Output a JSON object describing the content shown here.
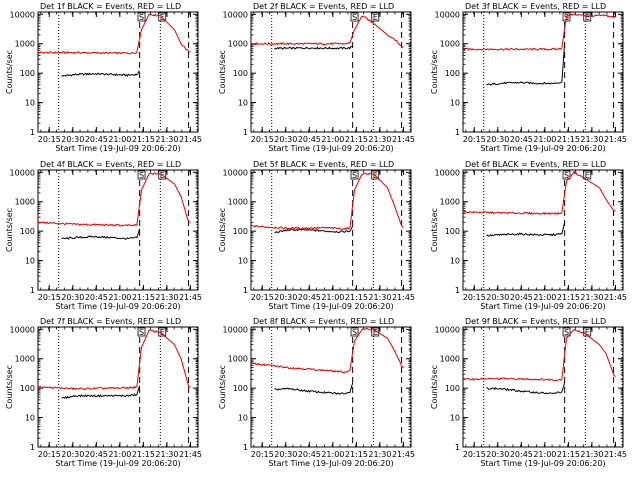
{
  "figure": {
    "xlabel": "Start Time (19-Jul-09 20:06:20)",
    "ylabel": "Counts/sec",
    "xticks": [
      "20:15",
      "20:30",
      "20:45",
      "21:00",
      "21:15",
      "21:30",
      "21:45"
    ],
    "yticks": [
      "1",
      "10",
      "100",
      "1000",
      "10000"
    ]
  },
  "chart_data": [
    {
      "type": "line",
      "title": "Det 1f BLACK = Events, RED = LLD",
      "yscale": "log",
      "xlim": [
        20.1,
        21.8
      ],
      "ylim": [
        1,
        12000
      ],
      "xlabel": "Start Time (19-Jul-09 20:06:20)",
      "ylabel": "Counts/sec",
      "grid": false,
      "series": [
        {
          "color": "#000000",
          "x": [
            20.35,
            20.5,
            20.7,
            20.9,
            21.05,
            21.15,
            21.18
          ],
          "y": [
            80,
            90,
            95,
            90,
            85,
            90,
            120
          ]
        },
        {
          "color": "#e00000",
          "x": [
            20.1,
            20.5,
            20.9,
            21.1,
            21.15,
            21.2,
            21.28,
            21.4,
            21.55,
            21.62,
            21.7,
            21.72
          ],
          "y": [
            500,
            500,
            480,
            480,
            520,
            3000,
            10000,
            9000,
            3000,
            1000,
            550,
            550
          ]
        }
      ],
      "vlines_dotted": [
        20.32,
        21.4,
        21.79
      ],
      "vlines_dashed": [
        21.18,
        21.7
      ],
      "markers": [
        {
          "label": "S",
          "x": 21.2
        },
        {
          "label": "E",
          "x": 21.42
        }
      ]
    },
    {
      "type": "line",
      "title": "Det 2f BLACK = Events, RED = LLD",
      "yscale": "log",
      "xlim": [
        20.1,
        21.8
      ],
      "ylim": [
        1,
        12000
      ],
      "xlabel": "Start Time (19-Jul-09 20:06:20)",
      "ylabel": "Counts/sec",
      "grid": false,
      "series": [
        {
          "color": "#000000",
          "x": [
            20.35,
            20.5,
            20.7,
            20.9,
            21.05,
            21.15,
            21.18
          ],
          "y": [
            700,
            700,
            720,
            710,
            700,
            720,
            800
          ]
        },
        {
          "color": "#e00000",
          "x": [
            20.1,
            20.5,
            20.9,
            21.1,
            21.15,
            21.2,
            21.28,
            21.4,
            21.55,
            21.62,
            21.7,
            21.72
          ],
          "y": [
            1000,
            1000,
            1000,
            1000,
            1050,
            3000,
            9000,
            5000,
            2000,
            1500,
            800,
            800
          ]
        }
      ],
      "vlines_dotted": [
        20.32,
        21.4,
        21.79
      ],
      "vlines_dashed": [
        21.18,
        21.7
      ],
      "markers": [
        {
          "label": "S",
          "x": 21.2
        },
        {
          "label": "E",
          "x": 21.42
        }
      ]
    },
    {
      "type": "line",
      "title": "Det 3f BLACK = Events, RED = LLD",
      "yscale": "log",
      "xlim": [
        20.1,
        21.8
      ],
      "ylim": [
        1,
        12000
      ],
      "xlabel": "Start Time (19-Jul-09 20:06:20)",
      "ylabel": "Counts/sec",
      "grid": false,
      "series": [
        {
          "color": "#000000",
          "x": [
            20.35,
            20.5,
            20.7,
            20.9,
            21.05,
            21.15,
            21.18
          ],
          "y": [
            40,
            45,
            48,
            45,
            45,
            50,
            1000
          ]
        },
        {
          "color": "#e00000",
          "x": [
            20.1,
            20.5,
            20.9,
            21.1,
            21.15,
            21.2,
            21.28,
            21.4,
            21.55,
            21.62,
            21.7,
            21.72
          ],
          "y": [
            650,
            650,
            650,
            650,
            700,
            9000,
            10000,
            9000,
            9000,
            9000,
            8000,
            8000
          ]
        }
      ],
      "vlines_dotted": [
        20.32,
        21.4,
        21.79
      ],
      "vlines_dashed": [
        21.18,
        21.7
      ],
      "markers": [
        {
          "label": "S",
          "x": 21.2
        },
        {
          "label": "E",
          "x": 21.42
        }
      ]
    },
    {
      "type": "line",
      "title": "Det 4f BLACK = Events, RED = LLD",
      "yscale": "log",
      "xlim": [
        20.1,
        21.8
      ],
      "ylim": [
        1,
        12000
      ],
      "xlabel": "Start Time (19-Jul-09 20:06:20)",
      "ylabel": "Counts/sec",
      "grid": false,
      "series": [
        {
          "color": "#000000",
          "x": [
            20.35,
            20.5,
            20.7,
            20.9,
            21.05,
            21.15,
            21.18
          ],
          "y": [
            55,
            60,
            65,
            60,
            55,
            60,
            120
          ]
        },
        {
          "color": "#e00000",
          "x": [
            20.1,
            20.5,
            20.9,
            21.1,
            21.15,
            21.2,
            21.28,
            21.4,
            21.55,
            21.62,
            21.7,
            21.72
          ],
          "y": [
            200,
            170,
            160,
            155,
            160,
            2500,
            9000,
            9000,
            4000,
            1500,
            200,
            200
          ]
        }
      ],
      "vlines_dotted": [
        20.32,
        21.4,
        21.79
      ],
      "vlines_dashed": [
        21.18,
        21.7
      ],
      "markers": [
        {
          "label": "S",
          "x": 21.2
        },
        {
          "label": "E",
          "x": 21.42
        }
      ]
    },
    {
      "type": "line",
      "title": "Det 5f BLACK = Events, RED = LLD",
      "yscale": "log",
      "xlim": [
        20.1,
        21.8
      ],
      "ylim": [
        1,
        12000
      ],
      "xlabel": "Start Time (19-Jul-09 20:06:20)",
      "ylabel": "Counts/sec",
      "grid": false,
      "series": [
        {
          "color": "#000000",
          "x": [
            20.35,
            20.5,
            20.7,
            20.9,
            21.05,
            21.15,
            21.18
          ],
          "y": [
            90,
            110,
            110,
            100,
            95,
            100,
            150
          ]
        },
        {
          "color": "#e00000",
          "x": [
            20.1,
            20.5,
            20.9,
            21.1,
            21.15,
            21.2,
            21.28,
            21.4,
            21.55,
            21.62,
            21.7,
            21.72
          ],
          "y": [
            150,
            125,
            130,
            120,
            125,
            2500,
            9000,
            9000,
            3000,
            800,
            150,
            130
          ]
        }
      ],
      "vlines_dotted": [
        20.32,
        21.4,
        21.79
      ],
      "vlines_dashed": [
        21.18,
        21.7
      ],
      "markers": [
        {
          "label": "S",
          "x": 21.2
        },
        {
          "label": "E",
          "x": 21.42
        }
      ]
    },
    {
      "type": "line",
      "title": "Det 6f BLACK = Events, RED = LLD",
      "yscale": "log",
      "xlim": [
        20.1,
        21.8
      ],
      "ylim": [
        1,
        12000
      ],
      "xlabel": "Start Time (19-Jul-09 20:06:20)",
      "ylabel": "Counts/sec",
      "grid": false,
      "series": [
        {
          "color": "#000000",
          "x": [
            20.35,
            20.5,
            20.7,
            20.9,
            21.05,
            21.15,
            21.18
          ],
          "y": [
            70,
            75,
            80,
            75,
            75,
            80,
            200
          ]
        },
        {
          "color": "#e00000",
          "x": [
            20.1,
            20.5,
            20.9,
            21.1,
            21.15,
            21.2,
            21.28,
            21.4,
            21.55,
            21.62,
            21.7,
            21.72
          ],
          "y": [
            450,
            420,
            400,
            400,
            420,
            5000,
            10000,
            6000,
            3000,
            1200,
            500,
            500
          ]
        }
      ],
      "vlines_dotted": [
        20.32,
        21.4,
        21.79
      ],
      "vlines_dashed": [
        21.18,
        21.7
      ],
      "markers": [
        {
          "label": "S",
          "x": 21.2
        },
        {
          "label": "E",
          "x": 21.42
        }
      ]
    },
    {
      "type": "line",
      "title": "Det 7f BLACK = Events, RED = LLD",
      "yscale": "log",
      "xlim": [
        20.1,
        21.8
      ],
      "ylim": [
        1,
        12000
      ],
      "xlabel": "Start Time (19-Jul-09 20:06:20)",
      "ylabel": "Counts/sec",
      "grid": false,
      "series": [
        {
          "color": "#000000",
          "x": [
            20.35,
            20.5,
            20.7,
            20.9,
            21.05,
            21.15,
            21.18
          ],
          "y": [
            45,
            55,
            55,
            55,
            55,
            60,
            120
          ]
        },
        {
          "color": "#e00000",
          "x": [
            20.1,
            20.5,
            20.9,
            21.1,
            21.15,
            21.2,
            21.28,
            21.4,
            21.55,
            21.62,
            21.7,
            21.72
          ],
          "y": [
            110,
            95,
            100,
            105,
            110,
            2500,
            9000,
            8000,
            3000,
            1000,
            120,
            110
          ]
        }
      ],
      "vlines_dotted": [
        20.32,
        21.4,
        21.79
      ],
      "vlines_dashed": [
        21.18,
        21.7
      ],
      "markers": [
        {
          "label": "S",
          "x": 21.2
        },
        {
          "label": "E",
          "x": 21.42
        }
      ]
    },
    {
      "type": "line",
      "title": "Det 8f BLACK = Events, RED = LLD",
      "yscale": "log",
      "xlim": [
        20.1,
        21.8
      ],
      "ylim": [
        1,
        12000
      ],
      "xlabel": "Start Time (19-Jul-09 20:06:20)",
      "ylabel": "Counts/sec",
      "grid": false,
      "series": [
        {
          "color": "#000000",
          "x": [
            20.35,
            20.5,
            20.7,
            20.9,
            21.05,
            21.15,
            21.18
          ],
          "y": [
            90,
            95,
            80,
            70,
            65,
            70,
            150
          ]
        },
        {
          "color": "#e00000",
          "x": [
            20.1,
            20.5,
            20.9,
            21.1,
            21.15,
            21.2,
            21.28,
            21.4,
            21.55,
            21.62,
            21.7,
            21.72
          ],
          "y": [
            700,
            500,
            400,
            350,
            400,
            4000,
            10000,
            10000,
            5000,
            2000,
            600,
            500
          ]
        }
      ],
      "vlines_dotted": [
        20.32,
        21.4,
        21.79
      ],
      "vlines_dashed": [
        21.18,
        21.7
      ],
      "markers": [
        {
          "label": "S",
          "x": 21.2
        },
        {
          "label": "E",
          "x": 21.42
        }
      ]
    },
    {
      "type": "line",
      "title": "Det 9f BLACK = Events, RED = LLD",
      "yscale": "log",
      "xlim": [
        20.1,
        21.8
      ],
      "ylim": [
        1,
        12000
      ],
      "xlabel": "Start Time (19-Jul-09 20:06:20)",
      "ylabel": "Counts/sec",
      "grid": false,
      "series": [
        {
          "color": "#000000",
          "x": [
            20.35,
            20.5,
            20.7,
            20.9,
            21.05,
            21.15,
            21.18
          ],
          "y": [
            100,
            95,
            80,
            70,
            65,
            75,
            150
          ]
        },
        {
          "color": "#e00000",
          "x": [
            20.1,
            20.5,
            20.9,
            21.1,
            21.15,
            21.2,
            21.28,
            21.4,
            21.55,
            21.62,
            21.7,
            21.72
          ],
          "y": [
            200,
            210,
            200,
            190,
            200,
            5000,
            10000,
            7000,
            3000,
            1500,
            300,
            250
          ]
        }
      ],
      "vlines_dotted": [
        20.32,
        21.4,
        21.79
      ],
      "vlines_dashed": [
        21.18,
        21.7
      ],
      "markers": [
        {
          "label": "S",
          "x": 21.2
        },
        {
          "label": "E",
          "x": 21.42
        }
      ]
    }
  ]
}
